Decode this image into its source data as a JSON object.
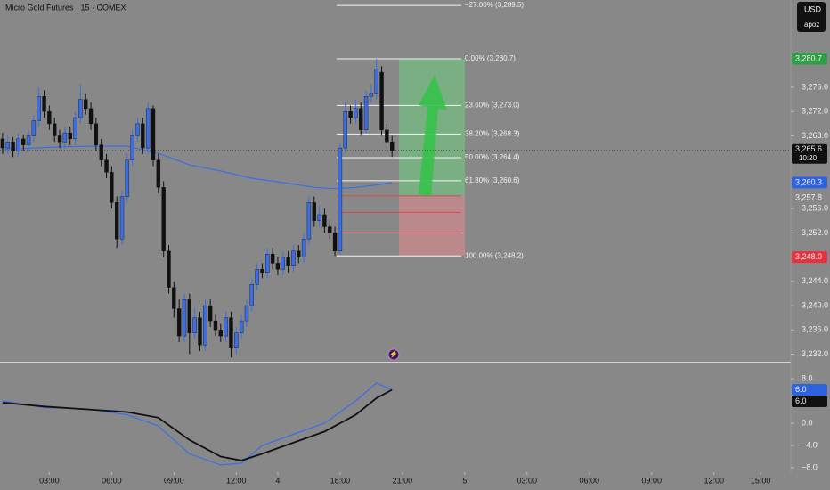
{
  "chart_data": [
    {
      "type": "candlestick",
      "title": "Micro Gold Futures · 15 · COMEX",
      "currency": "USD",
      "account": "apoz",
      "up_color": "#3b6ee6",
      "down_color": "#111111",
      "open": [
        3267.5,
        3266.0,
        3267.0,
        3265.5,
        3267.5,
        3266.5,
        3268.0,
        3270.5,
        3274.5,
        3272.0,
        3270.0,
        3268.0,
        3267.0,
        3268.5,
        3267.5,
        3271.0,
        3274.0,
        3272.5,
        3270.0,
        3266.5,
        3264.0,
        3262.0,
        3257.0,
        3251.0,
        3258.0,
        3264.0,
        3268.0,
        3270.0,
        3266.0,
        3272.5,
        3264.0,
        3259.5,
        3249.0,
        3243.0,
        3239.5,
        3235.0,
        3241.0,
        3235.5,
        3238.0,
        3233.5,
        3240.0,
        3237.5,
        3236.0,
        3235.0,
        3238.0,
        3233.0,
        3235.5,
        3237.5,
        3240.0,
        3243.5,
        3246.0,
        3245.5,
        3248.5,
        3247.0,
        3246.0,
        3248.0,
        3246.5,
        3249.0,
        3248.0,
        3251.0,
        3257.0,
        3254.0,
        3255.0,
        3253.0,
        3252.0,
        3249.0,
        3266.0,
        3272.0,
        3271.0,
        3272.5,
        3269.0,
        3274.5,
        3275.0,
        3278.5,
        3269.0,
        3267.0
      ],
      "high": [
        3268.5,
        3268.0,
        3267.8,
        3268.5,
        3268.2,
        3269.0,
        3271.5,
        3276.0,
        3275.5,
        3273.0,
        3271.0,
        3269.0,
        3269.5,
        3269.5,
        3272.0,
        3276.5,
        3275.0,
        3273.5,
        3271.0,
        3267.5,
        3265.0,
        3263.0,
        3258.0,
        3259.0,
        3265.0,
        3269.0,
        3271.0,
        3271.0,
        3273.5,
        3273.0,
        3265.0,
        3260.5,
        3250.0,
        3244.0,
        3241.0,
        3242.0,
        3242.0,
        3239.5,
        3239.0,
        3241.0,
        3241.0,
        3238.5,
        3237.0,
        3239.0,
        3239.0,
        3236.5,
        3238.5,
        3241.0,
        3244.5,
        3247.0,
        3247.0,
        3249.5,
        3249.5,
        3248.0,
        3249.0,
        3249.0,
        3250.0,
        3250.0,
        3252.0,
        3258.0,
        3258.0,
        3256.5,
        3256.0,
        3254.0,
        3253.0,
        3267.0,
        3273.5,
        3273.0,
        3274.0,
        3273.5,
        3275.5,
        3276.5,
        3280.7,
        3279.5,
        3270.0,
        3268.0
      ],
      "low": [
        3265.0,
        3265.0,
        3264.5,
        3264.5,
        3265.5,
        3265.5,
        3267.0,
        3269.5,
        3271.0,
        3269.0,
        3267.0,
        3266.0,
        3266.0,
        3266.5,
        3266.5,
        3270.0,
        3271.5,
        3269.0,
        3265.5,
        3263.0,
        3261.0,
        3256.0,
        3249.5,
        3250.0,
        3257.0,
        3263.0,
        3267.0,
        3265.0,
        3265.0,
        3263.0,
        3258.5,
        3248.0,
        3242.0,
        3238.0,
        3234.0,
        3234.0,
        3232.0,
        3234.5,
        3232.5,
        3232.5,
        3236.5,
        3235.0,
        3234.0,
        3234.0,
        3231.5,
        3232.0,
        3234.5,
        3236.5,
        3239.0,
        3242.5,
        3244.5,
        3244.5,
        3246.0,
        3245.0,
        3245.0,
        3245.5,
        3245.5,
        3247.0,
        3247.0,
        3250.0,
        3253.0,
        3253.0,
        3252.0,
        3251.0,
        3248.2,
        3248.5,
        3265.0,
        3270.0,
        3270.0,
        3268.0,
        3268.5,
        3273.5,
        3274.0,
        3268.0,
        3266.0,
        3264.5
      ],
      "close": [
        3266.0,
        3267.0,
        3265.5,
        3267.5,
        3266.5,
        3268.0,
        3270.5,
        3274.5,
        3272.0,
        3270.0,
        3268.0,
        3267.0,
        3268.5,
        3267.5,
        3271.0,
        3274.0,
        3272.5,
        3270.0,
        3266.5,
        3264.0,
        3262.0,
        3257.0,
        3251.0,
        3258.0,
        3264.0,
        3268.0,
        3270.0,
        3266.0,
        3272.5,
        3264.0,
        3259.5,
        3249.0,
        3243.0,
        3239.5,
        3235.0,
        3241.0,
        3235.5,
        3238.0,
        3233.5,
        3240.0,
        3237.5,
        3236.0,
        3235.0,
        3238.0,
        3233.0,
        3235.5,
        3237.5,
        3240.0,
        3243.5,
        3246.0,
        3245.5,
        3248.5,
        3247.0,
        3246.0,
        3248.0,
        3246.5,
        3249.0,
        3248.0,
        3251.0,
        3257.0,
        3254.0,
        3255.0,
        3253.0,
        3252.0,
        3249.0,
        3266.0,
        3272.0,
        3271.0,
        3272.5,
        3269.0,
        3274.5,
        3275.0,
        3279.0,
        3269.0,
        3267.0,
        3265.6
      ],
      "ma": {
        "color": "#3b6ee6",
        "x": [
          0,
          6,
          12,
          18,
          24,
          30,
          36,
          42,
          48,
          54,
          60,
          64,
          68,
          72,
          75
        ],
        "values": [
          3265.8,
          3266.0,
          3266.2,
          3266.3,
          3266.3,
          3265.1,
          3263.2,
          3262.2,
          3261.0,
          3260.3,
          3259.5,
          3259.3,
          3259.5,
          3259.9,
          3260.3
        ]
      },
      "xlim": [
        -0.5,
        151.8
      ],
      "ylim": [
        3230.9,
        3290.4
      ],
      "xticks": [
        {
          "value": 9,
          "label": "03:00"
        },
        {
          "value": 21,
          "label": "06:00"
        },
        {
          "value": 33,
          "label": "09:00"
        },
        {
          "value": 45,
          "label": "12:00"
        },
        {
          "value": 53,
          "label": "4"
        },
        {
          "value": 65,
          "label": "18:00"
        },
        {
          "value": 77,
          "label": "21:00"
        },
        {
          "value": 89,
          "label": "5"
        },
        {
          "value": 101,
          "label": "03:00"
        },
        {
          "value": 113,
          "label": "06:00"
        },
        {
          "value": 125,
          "label": "09:00"
        },
        {
          "value": 137,
          "label": "12:00"
        },
        {
          "value": 146,
          "label": "15:00"
        }
      ],
      "yticks": [
        {
          "value": 3276,
          "label": "3,276.0"
        },
        {
          "value": 3272,
          "label": "3,272.0"
        },
        {
          "value": 3268,
          "label": "3,268.0"
        },
        {
          "value": 3256,
          "label": "3,256.0"
        },
        {
          "value": 3252,
          "label": "3,252.0"
        },
        {
          "value": 3244,
          "label": "3,244.0"
        },
        {
          "value": 3240,
          "label": "3,240.0"
        },
        {
          "value": 3236,
          "label": "3,236.0"
        },
        {
          "value": 3232,
          "label": "3,232.0"
        }
      ],
      "fib_levels": [
        {
          "value": 3289.5,
          "label": "−27.00% (3,289.5)"
        },
        {
          "value": 3280.7,
          "label": "0.00% (3,280.7)"
        },
        {
          "value": 3273.0,
          "label": "23.60% (3,273.0)"
        },
        {
          "value": 3268.3,
          "label": "38.20% (3,268.3)"
        },
        {
          "value": 3264.4,
          "label": "50.00% (3,264.4)"
        },
        {
          "value": 3260.6,
          "label": "61.80% (3,260.6)"
        },
        {
          "value": 3248.2,
          "label": "100.00% (3,248.2)"
        }
      ],
      "fib_other": [
        3258.1,
        3255.4,
        3252.0
      ],
      "current": {
        "value": 3265.6,
        "label": "3,265.6",
        "time": "10:20"
      },
      "badges": [
        {
          "value": 3280.7,
          "label": "3,280.7",
          "color": "#2e9e47"
        },
        {
          "value": 3260.3,
          "label": "3,260.3",
          "color": "#2f62e0"
        },
        {
          "value": 3257.8,
          "label": "3,257.8",
          "color": "none"
        },
        {
          "value": 3248.0,
          "label": "3,248.0",
          "color": "#e5323f"
        }
      ]
    },
    {
      "type": "line",
      "xlim": [
        -0.5,
        151.8
      ],
      "ylim": [
        -8.8,
        10.4
      ],
      "series": [
        {
          "color": "#3b6ee6",
          "x": [
            0,
            8,
            16,
            24,
            30,
            36,
            42,
            46,
            50,
            56,
            62,
            68,
            72,
            75
          ],
          "values": [
            4.0,
            2.8,
            2.6,
            1.5,
            -0.5,
            -5.5,
            -7.5,
            -7.2,
            -4.0,
            -2.0,
            0.0,
            4.0,
            7.2,
            6.0
          ]
        },
        {
          "color": "#111111",
          "x": [
            0,
            8,
            16,
            24,
            30,
            36,
            42,
            46,
            50,
            56,
            62,
            68,
            72,
            75
          ],
          "values": [
            3.7,
            3.0,
            2.5,
            2.0,
            1.0,
            -3.0,
            -6.0,
            -6.7,
            -5.5,
            -3.5,
            -1.5,
            1.5,
            4.5,
            6.0
          ]
        }
      ],
      "yticks": [
        {
          "value": 8,
          "label": "8.0"
        },
        {
          "value": 0,
          "label": "0.0"
        },
        {
          "value": -4,
          "label": "−4.0"
        },
        {
          "value": -8,
          "label": "−8.0"
        }
      ],
      "badges": [
        {
          "value": 6,
          "label": "6.0",
          "color": "#2f62e0"
        },
        {
          "value": 6,
          "label": "6.0",
          "color": "#111111"
        }
      ]
    }
  ]
}
